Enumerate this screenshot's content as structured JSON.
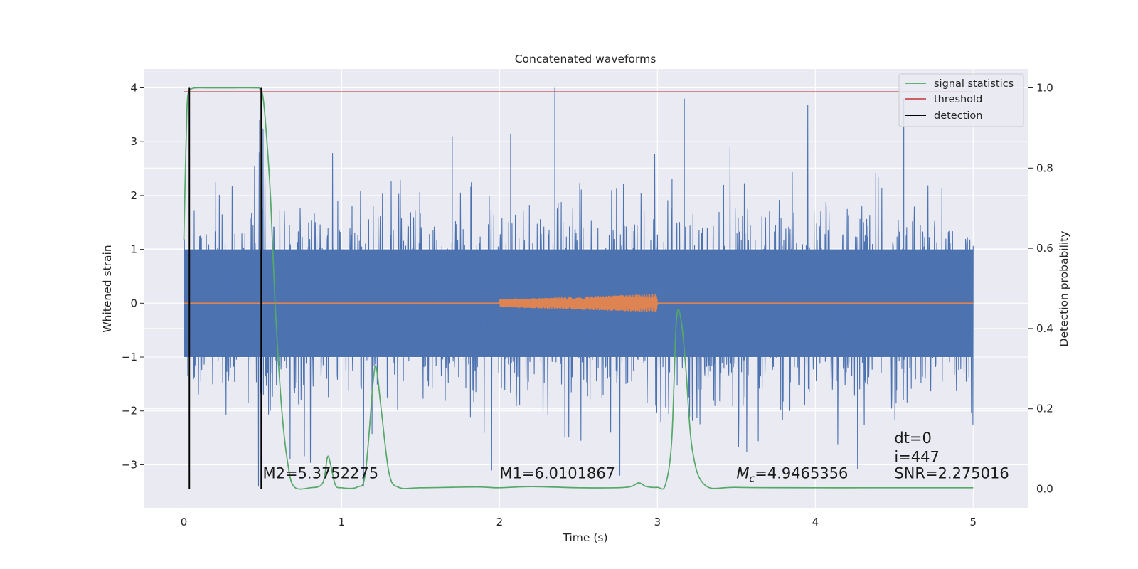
{
  "chart_data": {
    "type": "line",
    "title": "Concatenated waveforms",
    "xlabel": "Time (s)",
    "ylabel": "Whitened strain",
    "y2label": "Detection probability",
    "xlim": [
      -0.25,
      5.35
    ],
    "ylim": [
      -3.8,
      4.35
    ],
    "y2lim": [
      -0.047,
      1.047
    ],
    "xticks": [
      0,
      1,
      2,
      3,
      4,
      5
    ],
    "yticks": [
      -3,
      -2,
      -1,
      0,
      1,
      2,
      3,
      4
    ],
    "y2ticks": [
      0.0,
      0.2,
      0.4,
      0.6,
      0.8,
      1.0
    ],
    "grid": true,
    "legend_position": "top-right",
    "colors": {
      "strain": "#4c72b0",
      "template": "#dd8452",
      "signal": "#55a868",
      "threshold": "#c44e52",
      "detection": "#000000",
      "background": "#eaeaf2"
    },
    "series": [
      {
        "name": "signal statistics",
        "axis": "right",
        "x": [
          0.0,
          0.01,
          0.02,
          0.03,
          0.05,
          0.08,
          0.15,
          0.3,
          0.45,
          0.48,
          0.5,
          0.52,
          0.55,
          0.58,
          0.62,
          0.66,
          0.7,
          0.8,
          0.88,
          0.91,
          0.93,
          0.96,
          1.0,
          1.1,
          1.15,
          1.2,
          1.22,
          1.25,
          1.3,
          1.36,
          1.5,
          1.85,
          2.0,
          2.2,
          2.5,
          2.8,
          2.88,
          2.93,
          3.0,
          3.05,
          3.09,
          3.12,
          3.15,
          3.18,
          3.22,
          3.3,
          3.5,
          4.0,
          4.5,
          5.0
        ],
        "y": [
          0.62,
          0.8,
          0.95,
          0.99,
          0.998,
          1.0,
          1.0,
          1.0,
          1.0,
          0.998,
          0.98,
          0.9,
          0.72,
          0.45,
          0.2,
          0.06,
          0.005,
          0.003,
          0.015,
          0.08,
          0.06,
          0.01,
          0.003,
          0.005,
          0.04,
          0.27,
          0.3,
          0.2,
          0.04,
          0.004,
          0.003,
          0.005,
          0.003,
          0.006,
          0.003,
          0.004,
          0.015,
          0.006,
          0.004,
          0.01,
          0.12,
          0.42,
          0.42,
          0.3,
          0.1,
          0.01,
          0.004,
          0.003,
          0.003,
          0.003
        ]
      },
      {
        "name": "threshold",
        "axis": "right",
        "x": [
          0.0,
          5.0
        ],
        "y": [
          0.99,
          0.99
        ]
      },
      {
        "name": "detection",
        "axis": "right",
        "x": [
          0.035,
          0.49
        ],
        "y": [
          1.0,
          1.0
        ]
      },
      {
        "name": "",
        "axis": "left",
        "role": "whitened strain noise",
        "x_range": [
          0.0,
          5.0
        ],
        "approx_max": 4.0,
        "approx_min": -3.4
      },
      {
        "name": "",
        "axis": "left",
        "role": "injected waveform",
        "x": [
          0.0,
          2.0,
          3.0,
          5.0
        ],
        "y": [
          0.0,
          0.0,
          0.0,
          0.0
        ],
        "chirp_range": [
          2.0,
          3.0
        ],
        "chirp_amplitude": [
          0.07,
          0.17
        ]
      }
    ],
    "annotations": [
      {
        "text": "M2=5.3752275",
        "x": 0.5,
        "y": -3.25
      },
      {
        "text": "M1=6.0101867",
        "x": 2.0,
        "y": -3.25
      },
      {
        "text": "=4.9465356",
        "math_prefix": "M_c",
        "x": 3.5,
        "y": -3.25
      },
      {
        "text": "dt=0",
        "x": 4.5,
        "y": -2.6
      },
      {
        "text": "i=447",
        "x": 4.5,
        "y": -2.95
      },
      {
        "text": "SNR=2.275016",
        "x": 4.5,
        "y": -3.25
      }
    ]
  }
}
